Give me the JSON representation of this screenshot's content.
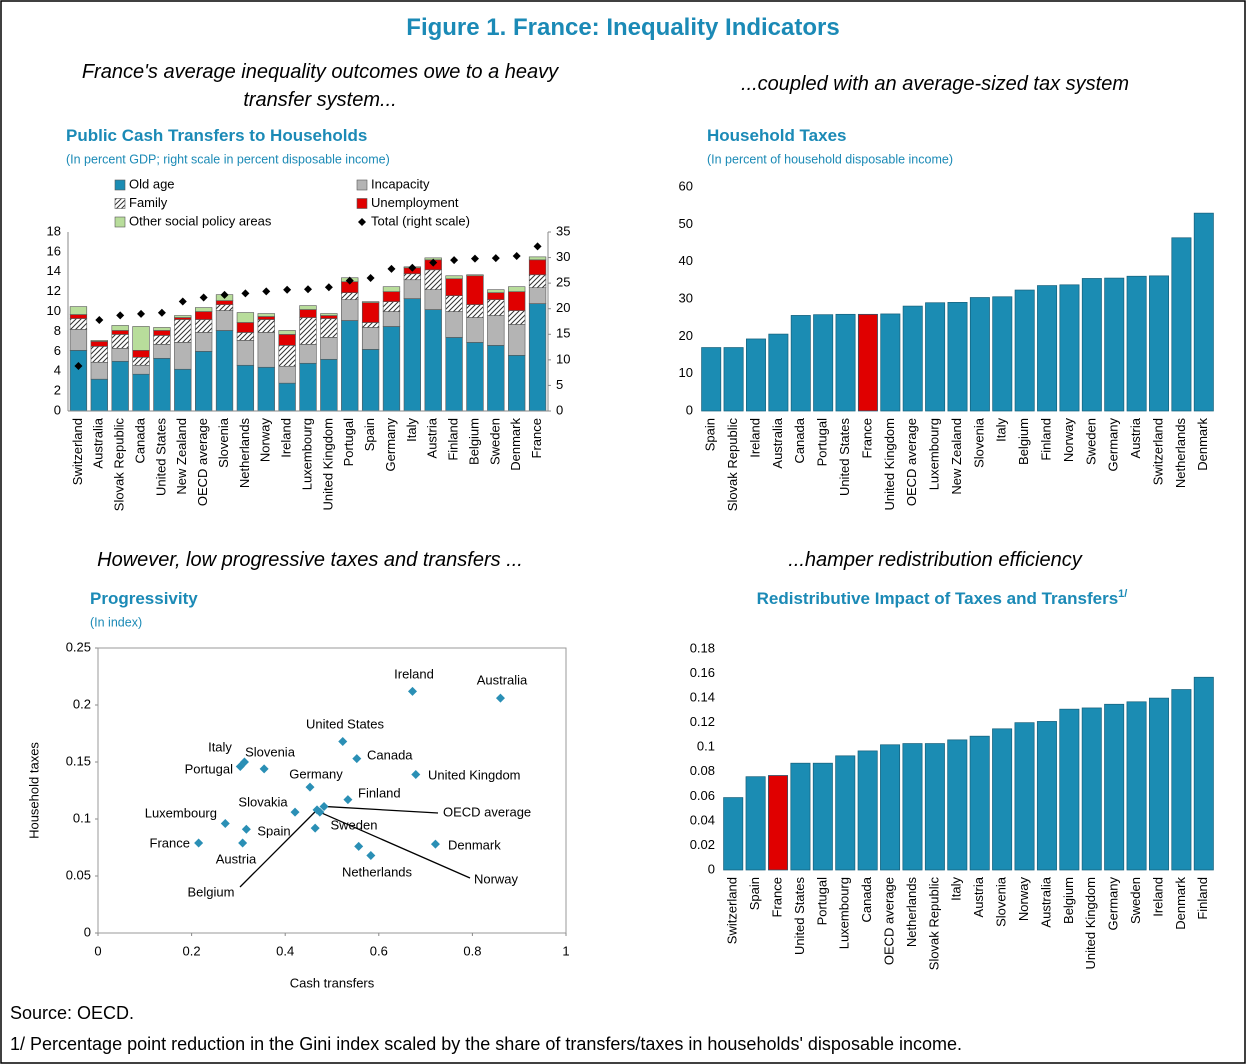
{
  "title": "Figure 1. France: Inequality Indicators",
  "captions": [
    "France's average inequality outcomes owe to a heavy transfer system...",
    "...coupled with an average-sized tax system",
    "However, low progressive taxes and transfers ...",
    "...hamper redistribution efficiency"
  ],
  "source": "Source: OECD.",
  "footnote": "1/ Percentage point reduction in the Gini index scaled by the share of transfers/taxes in households' disposable income.",
  "chart_data": [
    {
      "type": "bar",
      "stacked": true,
      "title": "Public Cash Transfers to Households",
      "subtitle": "(In percent GDP; right scale in percent disposable income)",
      "categories": [
        "Switzerland",
        "Australia",
        "Slovak Republic",
        "Canada",
        "United States",
        "New Zealand",
        "OECD average",
        "Slovenia",
        "Netherlands",
        "Norway",
        "Ireland",
        "Luxembourg",
        "United Kingdom",
        "Portugal",
        "Spain",
        "Germany",
        "Italy",
        "Austria",
        "Finland",
        "Belgium",
        "Sweden",
        "Denmark",
        "France"
      ],
      "series": [
        {
          "name": "Old age",
          "color": "#1b8cb3",
          "values": [
            6.1,
            3.2,
            5.0,
            3.7,
            5.3,
            4.2,
            6.0,
            8.1,
            4.6,
            4.4,
            2.8,
            4.8,
            5.2,
            9.1,
            6.2,
            8.5,
            11.3,
            10.2,
            7.4,
            6.9,
            6.6,
            5.6,
            10.8
          ]
        },
        {
          "name": "Incapacity",
          "color": "#b4b4b4",
          "values": [
            2.1,
            1.7,
            1.3,
            0.9,
            1.4,
            2.7,
            1.9,
            2.0,
            2.5,
            3.5,
            1.7,
            1.9,
            2.2,
            2.1,
            2.2,
            1.5,
            1.9,
            2.0,
            2.6,
            2.5,
            3.0,
            3.1,
            1.6
          ]
        },
        {
          "name": "Family",
          "color": "#ffffff",
          "pattern": "hatch",
          "values": [
            1.1,
            1.6,
            1.4,
            0.8,
            0.9,
            2.3,
            1.3,
            0.6,
            0.8,
            1.3,
            2.1,
            2.7,
            1.9,
            0.7,
            0.5,
            1.0,
            0.6,
            2.0,
            1.6,
            1.3,
            1.6,
            1.4,
            1.3
          ]
        },
        {
          "name": "Unemployment",
          "color": "#e00000",
          "values": [
            0.4,
            0.5,
            0.4,
            0.7,
            0.5,
            0.2,
            0.8,
            0.4,
            1.0,
            0.3,
            1.1,
            0.8,
            0.3,
            1.1,
            2.0,
            1.0,
            0.6,
            1.0,
            1.7,
            2.9,
            0.7,
            1.9,
            1.5
          ]
        },
        {
          "name": "Other social policy areas",
          "color": "#b8dd9b",
          "values": [
            0.8,
            0.1,
            0.5,
            2.4,
            0.3,
            0.2,
            0.4,
            0.6,
            1.0,
            0.3,
            0.4,
            0.4,
            0.2,
            0.4,
            0.1,
            0.5,
            0.1,
            0.2,
            0.3,
            0.1,
            0.3,
            0.5,
            0.3
          ]
        },
        {
          "name": "Total (right scale)",
          "color": "#000000",
          "marker": "diamond",
          "axis": "y2",
          "values": [
            8.8,
            17.8,
            18.7,
            19.0,
            19.2,
            21.4,
            22.2,
            22.7,
            23.0,
            23.4,
            23.7,
            23.8,
            24.2,
            25.5,
            26.0,
            27.8,
            28.0,
            29.0,
            29.5,
            29.8,
            29.9,
            30.3,
            32.2
          ]
        }
      ],
      "ylim": [
        0,
        18
      ],
      "yticks": [
        0,
        2,
        4,
        6,
        8,
        10,
        12,
        14,
        16,
        18
      ],
      "y2lim": [
        0,
        35
      ],
      "y2ticks": [
        0,
        5,
        10,
        15,
        20,
        25,
        30,
        35
      ],
      "legend": "top"
    },
    {
      "type": "bar",
      "title": "Household Taxes",
      "subtitle": "(In percent of household disposable income)",
      "categories": [
        "Spain",
        "Slovak Republic",
        "Ireland",
        "Australia",
        "Canada",
        "Portugal",
        "United States",
        "France",
        "United Kingdom",
        "OECD average",
        "Luxembourg",
        "New Zealand",
        "Slovenia",
        "Italy",
        "Belgium",
        "Finland",
        "Norway",
        "Sweden",
        "Germany",
        "Austria",
        "Switzerland",
        "Netherlands",
        "Denmark"
      ],
      "values": [
        17.0,
        17.0,
        19.3,
        20.6,
        25.6,
        25.8,
        25.9,
        25.9,
        26.0,
        28.1,
        29.0,
        29.1,
        30.4,
        30.6,
        32.4,
        33.6,
        33.8,
        35.5,
        35.6,
        36.1,
        36.2,
        46.4,
        53.0
      ],
      "colors": [
        "#1b8cb3",
        "#1b8cb3",
        "#1b8cb3",
        "#1b8cb3",
        "#1b8cb3",
        "#1b8cb3",
        "#1b8cb3",
        "#e00000",
        "#1b8cb3",
        "#1b8cb3",
        "#1b8cb3",
        "#1b8cb3",
        "#1b8cb3",
        "#1b8cb3",
        "#1b8cb3",
        "#1b8cb3",
        "#1b8cb3",
        "#1b8cb3",
        "#1b8cb3",
        "#1b8cb3",
        "#1b8cb3",
        "#1b8cb3",
        "#1b8cb3"
      ],
      "ylim": [
        0,
        60
      ],
      "yticks": [
        0,
        10,
        20,
        30,
        40,
        50,
        60
      ]
    },
    {
      "type": "scatter",
      "title": "Progressivity",
      "subtitle": "(In index)",
      "x_label": "Cash transfers",
      "y_label": "Household taxes",
      "color": "#2a8fb5",
      "labels": [
        "Ireland",
        "Australia",
        "United States",
        "Canada",
        "United Kingdom",
        "Italy",
        "Portugal",
        "Slovenia",
        "Germany",
        "Finland",
        "Slovakia",
        "OECD average",
        "Belgium",
        "Norway",
        "Luxembourg",
        "Spain",
        "France",
        "Austria",
        "Denmark",
        "Sweden",
        "Netherlands",
        null
      ],
      "x": [
        0.672,
        0.86,
        0.523,
        0.553,
        0.679,
        0.313,
        0.304,
        0.355,
        0.453,
        0.534,
        0.421,
        0.483,
        0.468,
        0.474,
        0.272,
        0.317,
        0.215,
        0.309,
        0.721,
        0.557,
        0.583,
        0.464
      ],
      "y": [
        0.212,
        0.206,
        0.168,
        0.153,
        0.139,
        0.15,
        0.146,
        0.144,
        0.128,
        0.117,
        0.106,
        0.111,
        0.108,
        0.106,
        0.096,
        0.091,
        0.079,
        0.079,
        0.078,
        0.076,
        0.068,
        0.092
      ],
      "xlim": [
        0,
        1
      ],
      "xticks": [
        0,
        0.2,
        0.4,
        0.6,
        0.8,
        1
      ],
      "ylim": [
        0,
        0.25
      ],
      "yticks": [
        0,
        0.05,
        0.1,
        0.15,
        0.2,
        0.25
      ]
    },
    {
      "type": "bar",
      "title": "Redistributive Impact of Taxes and Transfers",
      "title_note": "1/",
      "categories": [
        "Switzerland",
        "Spain",
        "France",
        "United States",
        "Portugal",
        "Luxembourg",
        "Canada",
        "OECD average",
        "Netherlands",
        "Slovak Republic",
        "Italy",
        "Austria",
        "Slovenia",
        "Norway",
        "Australia",
        "Belgium",
        "United Kingdom",
        "Germany",
        "Sweden",
        "Ireland",
        "Denmark",
        "Finland"
      ],
      "values": [
        0.059,
        0.076,
        0.077,
        0.087,
        0.087,
        0.093,
        0.097,
        0.102,
        0.103,
        0.103,
        0.106,
        0.109,
        0.115,
        0.12,
        0.121,
        0.131,
        0.132,
        0.135,
        0.137,
        0.14,
        0.147,
        0.157
      ],
      "colors": [
        "#1b8cb3",
        "#1b8cb3",
        "#e00000",
        "#1b8cb3",
        "#1b8cb3",
        "#1b8cb3",
        "#1b8cb3",
        "#1b8cb3",
        "#1b8cb3",
        "#1b8cb3",
        "#1b8cb3",
        "#1b8cb3",
        "#1b8cb3",
        "#1b8cb3",
        "#1b8cb3",
        "#1b8cb3",
        "#1b8cb3",
        "#1b8cb3",
        "#1b8cb3",
        "#1b8cb3",
        "#1b8cb3",
        "#1b8cb3"
      ],
      "ylim": [
        0,
        0.18
      ],
      "yticks": [
        0,
        0.02,
        0.04,
        0.06,
        0.08,
        0.1,
        0.12,
        0.14,
        0.16,
        0.18
      ]
    }
  ]
}
